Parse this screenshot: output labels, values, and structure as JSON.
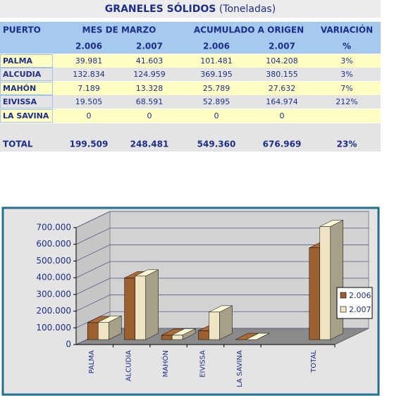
{
  "header": {
    "title": "GRANELES SÓLIDOS",
    "unit": "(Toneladas)"
  },
  "table": {
    "columns": [
      "PUERTO",
      "MES DE MARZO",
      "ACUMULADO  A  ORIGEN",
      "VARIACIÓN"
    ],
    "subcolumns": [
      "2.006",
      "2.007",
      "2.006",
      "2.007",
      "%"
    ],
    "rows": [
      [
        "PALMA",
        "39.981",
        "41.603",
        "101.481",
        "104.208",
        "3%"
      ],
      [
        "ALCUDIA",
        "132.834",
        "124.959",
        "369.195",
        "380.155",
        "3%"
      ],
      [
        "MAHÓN",
        "7.189",
        "13.328",
        "25.789",
        "27.632",
        "7%"
      ],
      [
        "EIVISSA",
        "19.505",
        "68.591",
        "52.895",
        "164.974",
        "212%"
      ],
      [
        "LA SAVINA",
        "0",
        "0",
        "0",
        "0"
      ]
    ],
    "total": [
      "TOTAL",
      "199.509",
      "248.481",
      "549.360",
      "676.969",
      "23%"
    ]
  },
  "chart_data": {
    "type": "bar3d",
    "categories": [
      "PALMA",
      "ALCUDIA",
      "MAHÓN",
      "EIVISSA",
      "LA SAVINA",
      null,
      "TOTAL"
    ],
    "series": [
      {
        "name": "2.006",
        "color": "#9c6030",
        "values": [
          101481,
          369195,
          25789,
          52895,
          0,
          null,
          549360
        ]
      },
      {
        "name": "2.007",
        "color": "#efe4c4",
        "values": [
          104208,
          380155,
          27632,
          164974,
          0,
          null,
          676969
        ]
      }
    ],
    "ylim": [
      0,
      700000
    ],
    "yticks": [
      0,
      {
        "value": 100000,
        "label": "100.000"
      },
      {
        "value": 200000,
        "label": "200.000"
      },
      {
        "value": 300000,
        "label": "300.000"
      },
      {
        "value": 400000,
        "label": "400.000"
      },
      {
        "value": 500000,
        "label": "500.000"
      },
      {
        "value": 600000,
        "label": "600.000"
      },
      {
        "value": 700000,
        "label": "700.000"
      }
    ],
    "grid": true,
    "legend": "right"
  }
}
